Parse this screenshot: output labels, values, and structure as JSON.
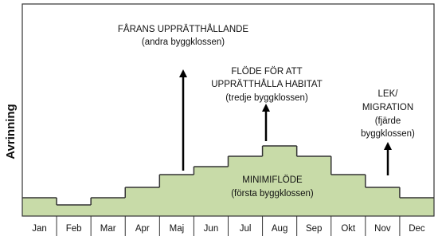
{
  "chart_data": {
    "type": "step-area",
    "ylabel": "Avrinning",
    "categories": [
      "Jan",
      "Feb",
      "Mar",
      "Apr",
      "Maj",
      "Jun",
      "Jul",
      "Aug",
      "Sep",
      "Okt",
      "Nov",
      "Dec"
    ],
    "values": [
      23,
      14,
      23,
      36,
      52,
      62,
      75,
      88,
      75,
      52,
      36,
      23
    ],
    "ylim": [
      0,
      266
    ],
    "color": "#c8dba8",
    "annotations": [
      {
        "lines": [
          "FÅRANS UPPRÄTTHÅLLANDE",
          "(andra byggklossen)"
        ]
      },
      {
        "lines": [
          "FLÖDE FÖR ATT",
          "UPPRÄTTHÅLLA HABITAT",
          "(tredje byggklossen)"
        ]
      },
      {
        "lines": [
          "LEK/",
          "MIGRATION",
          "(fjärde",
          "byggklossen)"
        ]
      },
      {
        "lines": [
          "MINIMIFLÖDE",
          "(första byggklossen)"
        ]
      }
    ]
  }
}
